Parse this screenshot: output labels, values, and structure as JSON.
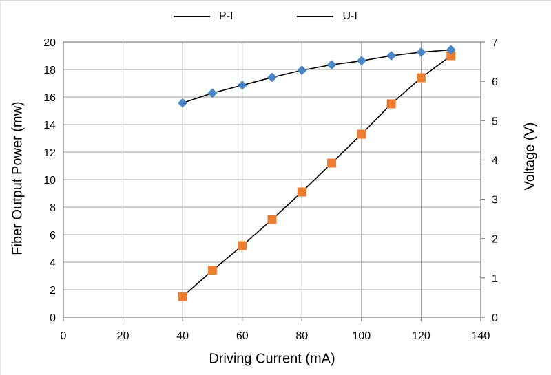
{
  "chart_data": {
    "type": "line",
    "x": [
      40,
      50,
      60,
      70,
      80,
      90,
      100,
      110,
      120,
      130
    ],
    "series": [
      {
        "name": "P-I",
        "axis": "left",
        "marker": "square",
        "marker_color": "#ED7D31",
        "line_color": "#000000",
        "values": [
          1.5,
          3.4,
          5.2,
          7.1,
          9.1,
          11.2,
          13.3,
          15.5,
          17.4,
          19.0
        ]
      },
      {
        "name": "U-I",
        "axis": "right",
        "marker": "diamond",
        "marker_color": "#4A85C6",
        "line_color": "#000000",
        "values": [
          5.45,
          5.7,
          5.9,
          6.1,
          6.28,
          6.42,
          6.52,
          6.65,
          6.74,
          6.8
        ]
      }
    ],
    "x_axis": {
      "label": "Driving Current (mA)",
      "min": 0,
      "max": 140,
      "step": 20
    },
    "y_left": {
      "label": "Fiber Output Power (mw)",
      "min": 0,
      "max": 20,
      "step": 2
    },
    "y_right": {
      "label": "Voltage (V)",
      "min": 0,
      "max": 7,
      "step": 1
    },
    "legend": {
      "position": "top",
      "entries": [
        "P-I",
        "U-I"
      ]
    },
    "grid": "on",
    "colors": {
      "gridline": "#9E9E9E",
      "plot_border": "#7F7F7F",
      "tick": "#7F7F7F",
      "text": "#000000",
      "background": "#FFFFFF"
    }
  }
}
